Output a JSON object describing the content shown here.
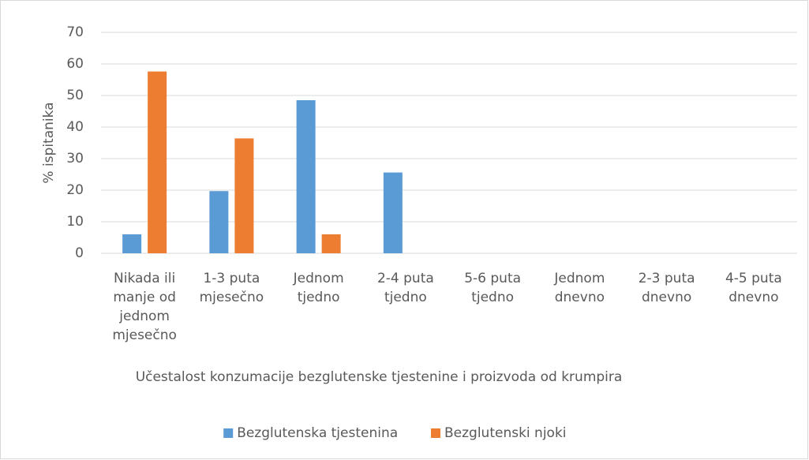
{
  "chart_data": {
    "type": "bar",
    "xlabel": "Učestalost konzumacije bezglutenske tjestenine i proizvoda od krumpira",
    "ylabel": "% ispitanika",
    "categories": [
      "Nikada ili manje od jednom mjesečno",
      "1-3 puta mjesečno",
      "Jednom tjedno",
      "2-4 puta tjedno",
      "5-6 puta tjedno",
      "Jednom dnevno",
      "2-3 puta dnevno",
      "4-5 puta dnevno"
    ],
    "series": [
      {
        "name": "Bezglutenska tjestenina",
        "color": "#5b9bd5",
        "values": [
          6,
          19.7,
          48.5,
          25.6,
          0,
          0,
          0,
          0
        ]
      },
      {
        "name": "Bezglutenski njoki",
        "color": "#ed7d31",
        "values": [
          57.6,
          36.4,
          6,
          0,
          0,
          0,
          0,
          0
        ]
      }
    ],
    "ylim": [
      0,
      70
    ],
    "yticks": [
      0,
      10,
      20,
      30,
      40,
      50,
      60,
      70
    ],
    "grid": true,
    "legend": "bottom"
  }
}
